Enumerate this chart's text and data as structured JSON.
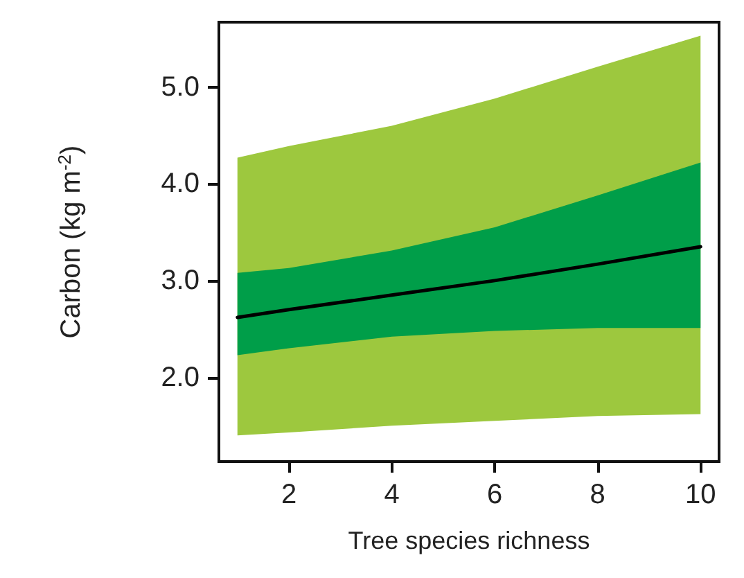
{
  "chart_data": {
    "type": "line",
    "xlabel": "Tree species richness",
    "ylabel": "Carbon (kg m$^{-2}$)",
    "x": [
      1,
      2,
      4,
      6,
      8,
      10
    ],
    "xlim": [
      0.64,
      10.36
    ],
    "xticks": [
      2,
      4,
      6,
      8,
      10
    ],
    "ylim": [
      1.13,
      5.67
    ],
    "yticks": [
      {
        "value": 2,
        "label": "2.0"
      },
      {
        "value": 3,
        "label": "3.0"
      },
      {
        "value": 4,
        "label": "4.0"
      },
      {
        "value": 5,
        "label": "5.0"
      }
    ],
    "grid": false,
    "marker": "none",
    "line_style": "solid",
    "series": [
      {
        "color": "#9dc83e",
        "values": [
          null,
          null,
          null,
          null,
          null,
          null
        ],
        "lower": [
          1.4,
          1.43,
          1.5,
          1.55,
          1.6,
          1.62
        ],
        "upper": [
          4.27,
          4.39,
          4.6,
          4.88,
          5.21,
          5.53
        ]
      },
      {
        "color": "#009e49",
        "values": [
          null,
          null,
          null,
          null,
          null,
          null
        ],
        "lower": [
          2.23,
          2.3,
          2.42,
          2.48,
          2.51,
          2.51
        ],
        "upper": [
          3.08,
          3.13,
          3.31,
          3.55,
          3.88,
          4.22
        ]
      },
      {
        "color": "#000000",
        "values": [
          2.62,
          2.7,
          2.85,
          3.0,
          3.17,
          3.35
        ]
      }
    ]
  }
}
